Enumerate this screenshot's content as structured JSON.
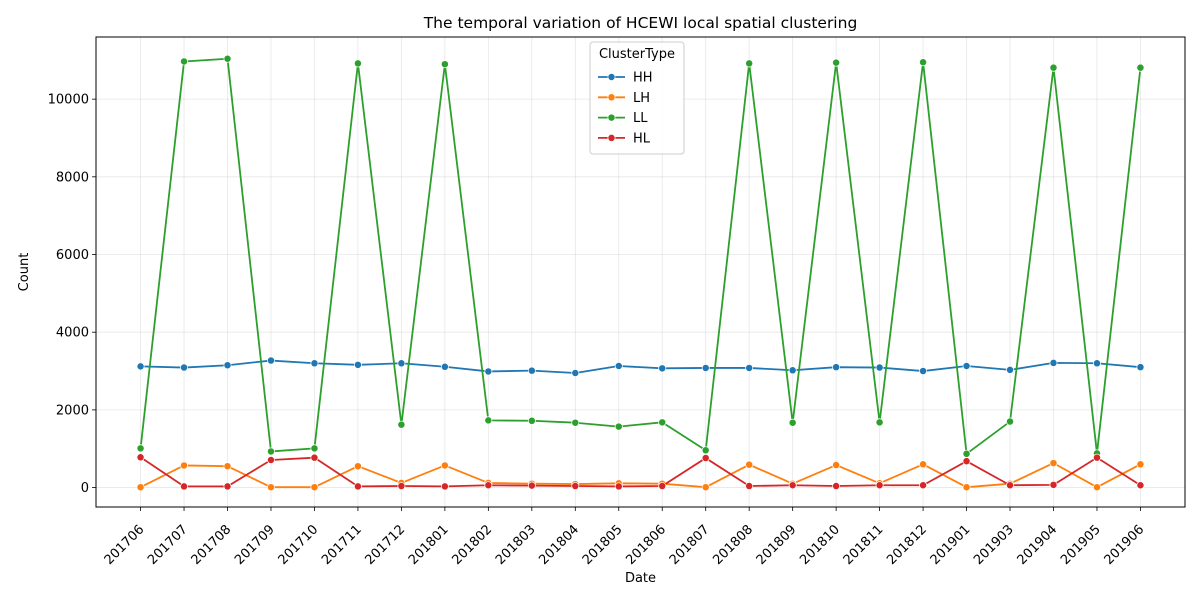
{
  "chart_data": {
    "type": "line",
    "title": "The temporal variation of HCEWI local spatial clustering",
    "xlabel": "Date",
    "ylabel": "Count",
    "categories": [
      "201706",
      "201707",
      "201708",
      "201709",
      "201710",
      "201711",
      "201712",
      "201801",
      "201802",
      "201803",
      "201804",
      "201805",
      "201806",
      "201807",
      "201808",
      "201809",
      "201810",
      "201811",
      "201812",
      "201901",
      "201903",
      "201904",
      "201905",
      "201906"
    ],
    "ylim": [
      -500,
      11600
    ],
    "yticks": [
      0,
      2000,
      4000,
      6000,
      8000,
      10000
    ],
    "grid": true,
    "legend": {
      "title": "ClusterType",
      "placement": "upper-center"
    },
    "series": [
      {
        "name": "HH",
        "color": "#1f77b4",
        "values": [
          3120,
          3090,
          3150,
          3270,
          3200,
          3160,
          3200,
          3110,
          2990,
          3010,
          2950,
          3130,
          3070,
          3080,
          3080,
          3020,
          3100,
          3090,
          3000,
          3130,
          3030,
          3210,
          3200,
          3100
        ]
      },
      {
        "name": "LH",
        "color": "#ff7f0e",
        "values": [
          10,
          570,
          550,
          10,
          10,
          550,
          120,
          570,
          120,
          100,
          90,
          110,
          100,
          10,
          590,
          100,
          580,
          110,
          600,
          10,
          100,
          630,
          10,
          600
        ]
      },
      {
        "name": "LL",
        "color": "#2ca02c",
        "values": [
          1010,
          10970,
          11040,
          930,
          1010,
          10920,
          1620,
          10900,
          1730,
          1720,
          1670,
          1570,
          1680,
          960,
          10920,
          1670,
          10940,
          1680,
          10950,
          870,
          1700,
          10810,
          880,
          10810
        ]
      },
      {
        "name": "HL",
        "color": "#d62728",
        "values": [
          780,
          30,
          30,
          710,
          770,
          30,
          40,
          30,
          60,
          50,
          40,
          30,
          40,
          760,
          40,
          60,
          40,
          60,
          60,
          680,
          60,
          70,
          770,
          60
        ]
      }
    ]
  }
}
